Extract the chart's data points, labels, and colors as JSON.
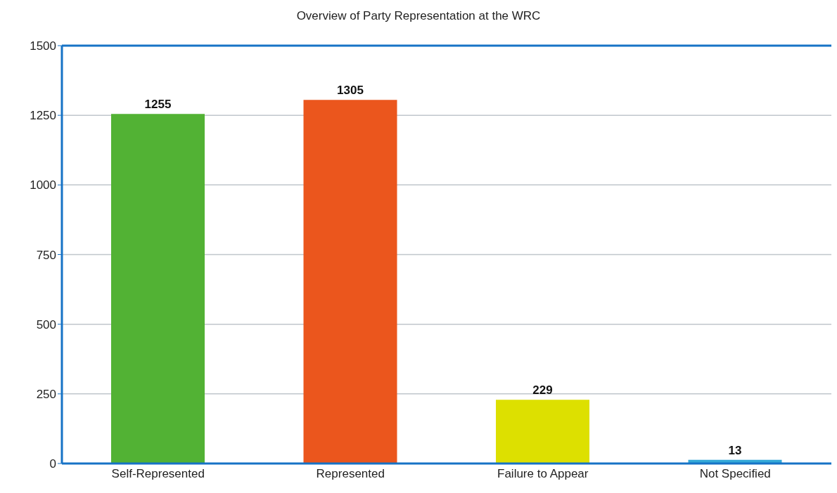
{
  "chart_data": {
    "type": "bar",
    "title": "Overview of Party Representation at the WRC",
    "categories": [
      "Self-Represented",
      "Represented",
      "Failure to Appear",
      "Not Specified"
    ],
    "values": [
      1255,
      1305,
      229,
      13
    ],
    "colors": [
      "#52b234",
      "#eb561d",
      "#dde000",
      "#33a8d8"
    ],
    "ylim": [
      0,
      1500
    ],
    "yticks": [
      0,
      250,
      500,
      750,
      1000,
      1250,
      1500
    ],
    "grid": "y",
    "data_labels": true
  }
}
